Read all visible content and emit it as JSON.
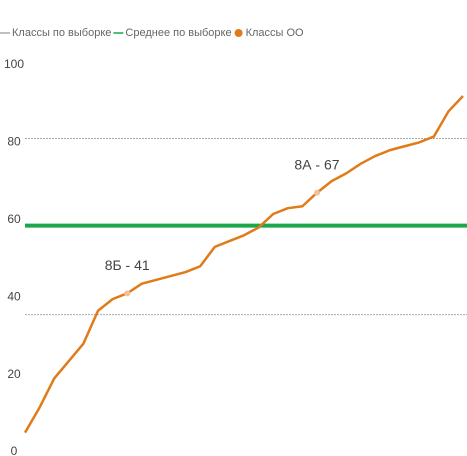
{
  "chart_data": {
    "type": "line",
    "ylim": [
      0,
      100
    ],
    "yticks": [
      0,
      20,
      40,
      60,
      80,
      100
    ],
    "series": [
      {
        "name": "Классы по выборке",
        "color": "#aaaaaa",
        "kind": "hline",
        "values": [
          81,
          35.5
        ]
      },
      {
        "name": "Среднее по выборке",
        "color": "#1aa84a",
        "kind": "hline",
        "values": [
          58.5
        ]
      },
      {
        "name": "Классы ОО",
        "color": "#e07b1a",
        "kind": "line",
        "values": [
          5,
          11.5,
          19,
          23.5,
          28,
          36.5,
          39.5,
          41,
          43.5,
          44.5,
          45.5,
          46.5,
          48,
          53,
          54.5,
          56,
          58,
          61.5,
          63,
          63.5,
          67,
          70,
          72,
          74.5,
          76.5,
          78,
          79,
          80,
          81.5,
          88,
          92
        ],
        "value_labels": [
          null,
          null,
          null,
          null,
          null,
          null,
          null,
          "8Б - 41",
          null,
          null,
          null,
          null,
          null,
          null,
          null,
          null,
          null,
          null,
          null,
          null,
          "8А - 67",
          null,
          null,
          null,
          null,
          null,
          null,
          null,
          null,
          null,
          null
        ]
      }
    ]
  }
}
